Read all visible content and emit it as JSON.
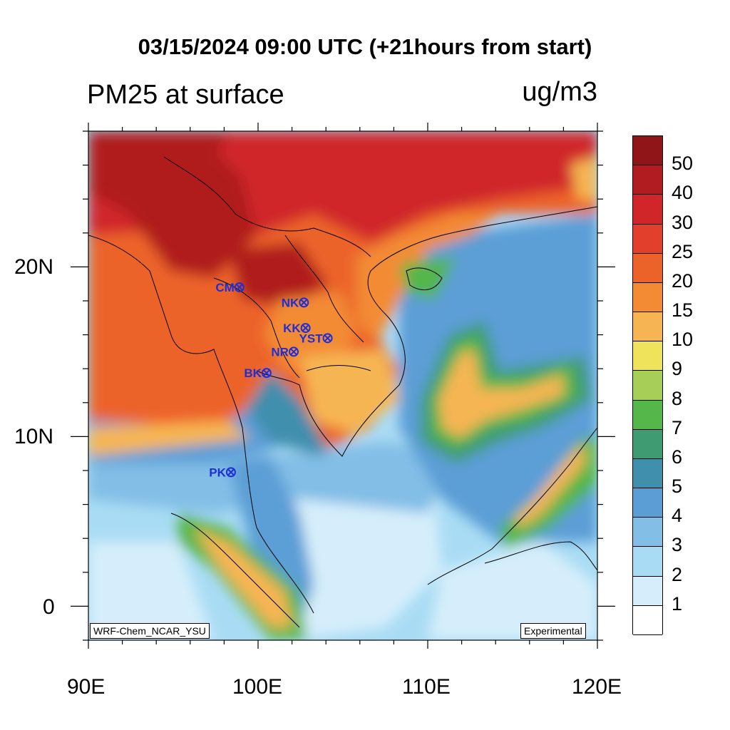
{
  "title": "03/15/2024 09:00 UTC (+21hours from start)",
  "subtitle_left": "PM25 at surface",
  "subtitle_right": "ug/m3",
  "x_ticks": [
    "90E",
    "100E",
    "110E",
    "120E"
  ],
  "y_ticks": [
    "20N",
    "10N",
    "0"
  ],
  "colorbar": {
    "labels": [
      "50",
      "40",
      "30",
      "25",
      "20",
      "15",
      "10",
      "9",
      "8",
      "7",
      "6",
      "5",
      "4",
      "3",
      "2",
      "1"
    ],
    "colors": [
      "#8f1518",
      "#b01c1f",
      "#d0262a",
      "#e2402c",
      "#ec6329",
      "#f38b34",
      "#f6b552",
      "#eee35a",
      "#a7cf58",
      "#55b64a",
      "#3f9c72",
      "#408fad",
      "#5b9ed6",
      "#82bee6",
      "#a9dcf4",
      "#d6eefb",
      "#ffffff"
    ]
  },
  "stations": [
    {
      "label": "CM",
      "lon": 98.9,
      "lat": 18.8
    },
    {
      "label": "NK",
      "lon": 102.7,
      "lat": 17.9
    },
    {
      "label": "KK",
      "lon": 102.8,
      "lat": 16.4
    },
    {
      "label": "YST",
      "lon": 104.1,
      "lat": 15.8
    },
    {
      "label": "NR",
      "lon": 102.1,
      "lat": 15.0
    },
    {
      "label": "BK",
      "lon": 100.5,
      "lat": 13.75
    },
    {
      "label": "PK",
      "lon": 98.4,
      "lat": 7.9
    }
  ],
  "model_tag": "WRF-Chem_NCAR_YSU",
  "experimental_tag": "Experimental"
}
